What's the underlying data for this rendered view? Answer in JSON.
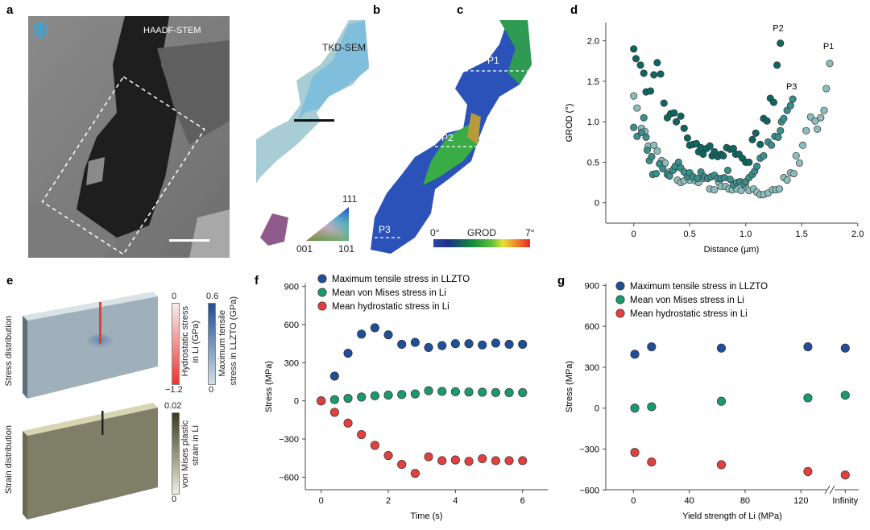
{
  "panels": {
    "a": {
      "label": "a",
      "caption": "HAADF-STEM",
      "icon": "snowflake-icon"
    },
    "b": {
      "label": "b",
      "caption": "TKD-SEM",
      "ipf": {
        "top": "111",
        "left": "001",
        "right": "101"
      }
    },
    "c": {
      "label": "c",
      "markers": [
        "P1",
        "P2",
        "P3"
      ],
      "colorbar": {
        "title": "GROD",
        "min": "0°",
        "max": "7°"
      }
    },
    "d": {
      "label": "d"
    },
    "e": {
      "label": "e",
      "row1": "Stress distribution",
      "row2": "Strain distribution",
      "bar1": {
        "title1": "Hydrostatic stress",
        "title2": "in Li (GPa)",
        "max": "0",
        "min": "−1.2"
      },
      "bar2": {
        "title1": "Maximum tensile",
        "title2": "stress in LLZTO (GPa)",
        "max": "0.6",
        "min": "0"
      },
      "bar3": {
        "title1": "von Mises plastic",
        "title2": "strain in Li",
        "max": "0.02",
        "min": "0"
      }
    },
    "f": {
      "label": "f"
    },
    "g": {
      "label": "g"
    }
  },
  "colors": {
    "blue": "#1f4e9a",
    "green": "#1a9a6c",
    "red": "#e0413f",
    "dark_teal": "#0e6663",
    "mid_teal": "#3a8f8c",
    "light_teal": "#8cbcbc"
  },
  "chart_data": [
    {
      "id": "d",
      "type": "scatter",
      "xlabel": "Distance (µm)",
      "ylabel": "GROD (°)",
      "xlim": [
        -0.25,
        2.0
      ],
      "ylim": [
        -0.25,
        2.25
      ],
      "xticks": [
        "0",
        "0.5",
        "1.0",
        "1.5",
        "2.0"
      ],
      "xtick_values": [
        0,
        0.5,
        1.0,
        1.5,
        2.0
      ],
      "yticks": [
        "0",
        "0.5",
        "1.0",
        "1.5",
        "2.0"
      ],
      "ytick_values": [
        0,
        0.5,
        1.0,
        1.5,
        2.0
      ],
      "series": [
        {
          "name": "P1",
          "color": "#8cbcbc",
          "points": [
            [
              0,
              1.32
            ],
            [
              0.03,
              1.17
            ],
            [
              0.07,
              0.92
            ],
            [
              0.1,
              0.88
            ],
            [
              0.13,
              0.7
            ],
            [
              0.18,
              0.71
            ],
            [
              0.21,
              0.64
            ],
            [
              0.25,
              0.52
            ],
            [
              0.28,
              0.49
            ],
            [
              0.32,
              0.38
            ],
            [
              0.36,
              0.42
            ],
            [
              0.39,
              0.28
            ],
            [
              0.42,
              0.25
            ],
            [
              0.45,
              0.27
            ],
            [
              0.5,
              0.28
            ],
            [
              0.55,
              0.27
            ],
            [
              0.58,
              0.25
            ],
            [
              0.62,
              0.3
            ],
            [
              0.68,
              0.17
            ],
            [
              0.72,
              0.16
            ],
            [
              0.76,
              0.25
            ],
            [
              0.78,
              0.2
            ],
            [
              0.82,
              0.2
            ],
            [
              0.85,
              0.17
            ],
            [
              0.88,
              0.16
            ],
            [
              0.92,
              0.17
            ],
            [
              0.96,
              0.15
            ],
            [
              1.0,
              0.2
            ],
            [
              1.03,
              0.15
            ],
            [
              1.07,
              0.17
            ],
            [
              1.1,
              0.13
            ],
            [
              1.13,
              0.1
            ],
            [
              1.16,
              0.1
            ],
            [
              1.2,
              0.12
            ],
            [
              1.24,
              0.16
            ],
            [
              1.27,
              0.16
            ],
            [
              1.3,
              0.17
            ],
            [
              1.34,
              0.31
            ],
            [
              1.37,
              0.28
            ],
            [
              1.4,
              0.37
            ],
            [
              1.43,
              0.36
            ],
            [
              1.45,
              0.58
            ],
            [
              1.48,
              0.49
            ],
            [
              1.51,
              0.71
            ],
            [
              1.54,
              0.89
            ],
            [
              1.58,
              1.06
            ],
            [
              1.62,
              1.01
            ],
            [
              1.64,
              0.91
            ],
            [
              1.67,
              1.05
            ],
            [
              1.7,
              1.14
            ],
            [
              1.72,
              1.41
            ],
            [
              1.75,
              1.72
            ]
          ]
        },
        {
          "name": "P3",
          "color": "#3a8f8c",
          "points": [
            [
              0,
              0.93
            ],
            [
              0.03,
              0.82
            ],
            [
              0.07,
              0.87
            ],
            [
              0.09,
              1.05
            ],
            [
              0.11,
              0.81
            ],
            [
              0.12,
              0.65
            ],
            [
              0.14,
              0.52
            ],
            [
              0.16,
              0.57
            ],
            [
              0.17,
              0.35
            ],
            [
              0.2,
              0.36
            ],
            [
              0.23,
              0.48
            ],
            [
              0.26,
              0.42
            ],
            [
              0.3,
              0.35
            ],
            [
              0.32,
              0.33
            ],
            [
              0.35,
              0.4
            ],
            [
              0.37,
              0.45
            ],
            [
              0.4,
              0.5
            ],
            [
              0.42,
              0.43
            ],
            [
              0.45,
              0.38
            ],
            [
              0.48,
              0.32
            ],
            [
              0.5,
              0.37
            ],
            [
              0.53,
              0.32
            ],
            [
              0.57,
              0.3
            ],
            [
              0.6,
              0.38
            ],
            [
              0.63,
              0.32
            ],
            [
              0.66,
              0.3
            ],
            [
              0.69,
              0.32
            ],
            [
              0.72,
              0.34
            ],
            [
              0.75,
              0.3
            ],
            [
              0.78,
              0.3
            ],
            [
              0.81,
              0.31
            ],
            [
              0.84,
              0.4
            ],
            [
              0.86,
              0.29
            ],
            [
              0.89,
              0.22
            ],
            [
              0.92,
              0.25
            ],
            [
              0.95,
              0.26
            ],
            [
              0.98,
              0.23
            ],
            [
              1.0,
              0.26
            ],
            [
              1.03,
              0.31
            ],
            [
              1.06,
              0.35
            ],
            [
              1.08,
              0.39
            ],
            [
              1.1,
              0.45
            ],
            [
              1.13,
              0.55
            ],
            [
              1.16,
              0.58
            ],
            [
              1.2,
              0.75
            ],
            [
              1.23,
              0.71
            ],
            [
              1.26,
              0.82
            ],
            [
              1.29,
              0.81
            ],
            [
              1.31,
              0.89
            ],
            [
              1.32,
              1.0
            ],
            [
              1.34,
              1.04
            ],
            [
              1.37,
              1.14
            ],
            [
              1.4,
              1.2
            ],
            [
              1.42,
              1.28
            ]
          ]
        },
        {
          "name": "P2",
          "color": "#0e6663",
          "points": [
            [
              0,
              1.9
            ],
            [
              0.02,
              1.78
            ],
            [
              0.06,
              1.7
            ],
            [
              0.09,
              1.6
            ],
            [
              0.11,
              1.37
            ],
            [
              0.15,
              1.38
            ],
            [
              0.18,
              1.58
            ],
            [
              0.21,
              1.73
            ],
            [
              0.24,
              1.59
            ],
            [
              0.27,
              1.23
            ],
            [
              0.3,
              1.05
            ],
            [
              0.33,
              1.1
            ],
            [
              0.36,
              1.11
            ],
            [
              0.38,
              1.0
            ],
            [
              0.42,
              1.07
            ],
            [
              0.45,
              0.92
            ],
            [
              0.48,
              0.8
            ],
            [
              0.5,
              0.71
            ],
            [
              0.53,
              0.72
            ],
            [
              0.56,
              0.73
            ],
            [
              0.58,
              0.63
            ],
            [
              0.6,
              0.68
            ],
            [
              0.62,
              0.6
            ],
            [
              0.65,
              0.67
            ],
            [
              0.68,
              0.7
            ],
            [
              0.7,
              0.58
            ],
            [
              0.72,
              0.63
            ],
            [
              0.75,
              0.57
            ],
            [
              0.78,
              0.6
            ],
            [
              0.8,
              0.58
            ],
            [
              0.83,
              0.68
            ],
            [
              0.86,
              0.66
            ],
            [
              0.89,
              0.67
            ],
            [
              0.91,
              0.6
            ],
            [
              0.94,
              0.6
            ],
            [
              0.97,
              0.55
            ],
            [
              1.0,
              0.5
            ],
            [
              1.03,
              0.5
            ],
            [
              1.06,
              0.78
            ],
            [
              1.09,
              0.86
            ],
            [
              1.13,
              0.72
            ],
            [
              1.16,
              1.04
            ],
            [
              1.19,
              1.01
            ],
            [
              1.22,
              1.29
            ],
            [
              1.25,
              1.24
            ],
            [
              1.28,
              1.7
            ],
            [
              1.31,
              1.97
            ]
          ]
        }
      ],
      "annotations": [
        {
          "text": "P2",
          "x": 1.29,
          "y": 2.12
        },
        {
          "text": "P1",
          "x": 1.74,
          "y": 1.9
        },
        {
          "text": "P3",
          "x": 1.41,
          "y": 1.4
        }
      ]
    },
    {
      "id": "f",
      "type": "scatter",
      "xlabel": "Time (s)",
      "ylabel": "Stress (MPa)",
      "xlim": [
        -0.4,
        6.7
      ],
      "ylim": [
        -700,
        900
      ],
      "xticks": [
        "0",
        "2",
        "4",
        "6"
      ],
      "xtick_values": [
        0,
        2,
        4,
        6
      ],
      "yticks": [
        "900",
        "600",
        "300",
        "0",
        "−300",
        "−600"
      ],
      "ytick_values": [
        900,
        600,
        300,
        0,
        -300,
        -600
      ],
      "legend": "top-left",
      "series": [
        {
          "name": "Maximum tensile stress in LLZTO",
          "color": "#1f4e9a",
          "points": [
            [
              0.4,
              195
            ],
            [
              0.8,
              375
            ],
            [
              1.2,
              525
            ],
            [
              1.6,
              575
            ],
            [
              2.0,
              520
            ],
            [
              2.4,
              445
            ],
            [
              2.8,
              460
            ],
            [
              3.2,
              420
            ],
            [
              3.6,
              435
            ],
            [
              4.0,
              450
            ],
            [
              4.4,
              450
            ],
            [
              4.8,
              440
            ],
            [
              5.2,
              455
            ],
            [
              5.6,
              445
            ],
            [
              6.0,
              445
            ]
          ]
        },
        {
          "name": "Mean von Mises stress in Li",
          "color": "#1a9a6c",
          "points": [
            [
              0,
              0
            ],
            [
              0.4,
              10
            ],
            [
              0.8,
              20
            ],
            [
              1.2,
              30
            ],
            [
              1.6,
              40
            ],
            [
              2.0,
              45
            ],
            [
              2.4,
              50
            ],
            [
              2.8,
              55
            ],
            [
              3.2,
              80
            ],
            [
              3.6,
              75
            ],
            [
              4.0,
              72
            ],
            [
              4.4,
              70
            ],
            [
              4.8,
              68
            ],
            [
              5.2,
              66
            ],
            [
              5.6,
              65
            ],
            [
              6.0,
              65
            ]
          ]
        },
        {
          "name": "Mean hydrostatic stress in Li",
          "color": "#e0413f",
          "points": [
            [
              0,
              0
            ],
            [
              0.4,
              -90
            ],
            [
              0.8,
              -175
            ],
            [
              1.2,
              -265
            ],
            [
              1.6,
              -350
            ],
            [
              2.0,
              -430
            ],
            [
              2.4,
              -500
            ],
            [
              2.8,
              -570
            ],
            [
              3.2,
              -440
            ],
            [
              3.6,
              -470
            ],
            [
              4.0,
              -465
            ],
            [
              4.4,
              -475
            ],
            [
              4.8,
              -455
            ],
            [
              5.2,
              -470
            ],
            [
              5.6,
              -470
            ],
            [
              6.0,
              -470
            ]
          ]
        }
      ]
    },
    {
      "id": "g",
      "type": "scatter",
      "xlabel": "Yield strength of Li (MPa)",
      "ylabel": "Stress (MPa)",
      "xlim": [
        -20,
        160
      ],
      "ylim": [
        -600,
        900
      ],
      "xticks": [
        "0",
        "40",
        "80",
        "120",
        "Infinity"
      ],
      "xtick_values": [
        0,
        40,
        80,
        120,
        152
      ],
      "yticks": [
        "900",
        "600",
        "300",
        "0",
        "−300",
        "−600"
      ],
      "ytick_values": [
        900,
        600,
        300,
        0,
        -300,
        -600
      ],
      "axis_break": "between 120 and Infinity",
      "legend": "top-left",
      "series": [
        {
          "name": "Maximum tensile stress in LLZTO",
          "color": "#1f4e9a",
          "points": [
            [
              1,
              395
            ],
            [
              13,
              450
            ],
            [
              63,
              440
            ],
            [
              125,
              450
            ],
            [
              152,
              440
            ]
          ]
        },
        {
          "name": "Mean von Mises stress in Li",
          "color": "#1a9a6c",
          "points": [
            [
              1,
              0
            ],
            [
              13,
              10
            ],
            [
              63,
              50
            ],
            [
              125,
              75
            ],
            [
              152,
              95
            ]
          ]
        },
        {
          "name": "Mean hydrostatic stress in Li",
          "color": "#e0413f",
          "points": [
            [
              1,
              -325
            ],
            [
              13,
              -395
            ],
            [
              63,
              -415
            ],
            [
              125,
              -465
            ],
            [
              152,
              -490
            ]
          ]
        }
      ]
    }
  ]
}
